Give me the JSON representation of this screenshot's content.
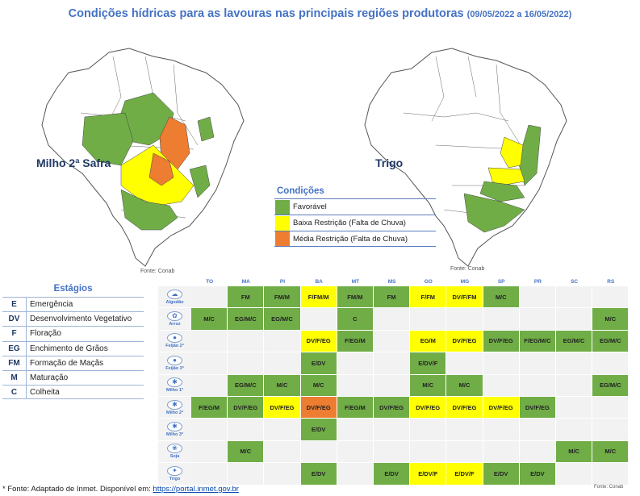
{
  "header": {
    "title": "Condições hídricas para as lavouras nas principais regiões produtoras",
    "period": "(09/05/2022 a 16/05/2022)"
  },
  "maps": [
    {
      "label": "Milho 2ª Safra",
      "source": "Fonte: Conab"
    },
    {
      "label": "Trigo",
      "source": "Fonte: Conab"
    }
  ],
  "legend": {
    "title": "Condições",
    "items": [
      {
        "label": "Favorável",
        "color": "#70ad47"
      },
      {
        "label": "Baixa Restrição (Falta de Chuva)",
        "color": "#ffff00"
      },
      {
        "label": "Média Restrição (Falta de Chuva)",
        "color": "#ed7d31"
      }
    ]
  },
  "stages": {
    "title": "Estágios",
    "items": [
      {
        "code": "E",
        "label": "Emergência"
      },
      {
        "code": "DV",
        "label": "Desenvolvimento Vegetativo"
      },
      {
        "code": "F",
        "label": "Floração"
      },
      {
        "code": "EG",
        "label": "Enchimento de Grãos"
      },
      {
        "code": "FM",
        "label": "Formação de Maçãs"
      },
      {
        "code": "M",
        "label": "Maturação"
      },
      {
        "code": "C",
        "label": "Colheita"
      }
    ]
  },
  "grid": {
    "states": [
      "TO",
      "MA",
      "PI",
      "BA",
      "MT",
      "MS",
      "GO",
      "MG",
      "SP",
      "PR",
      "SC",
      "RS"
    ],
    "colors": {
      "G": "#70ad47",
      "Y": "#ffff00",
      "O": "#ed7d31",
      "": "#f2f2f2"
    },
    "rows": [
      {
        "crop": "Algodão",
        "icon": "cotton-icon",
        "cells": [
          [
            "",
            ""
          ],
          [
            "FM",
            "G"
          ],
          [
            "FM/M",
            "G"
          ],
          [
            "F/FM/M",
            "Y"
          ],
          [
            "FM/M",
            "G"
          ],
          [
            "FM",
            "G"
          ],
          [
            "F/FM",
            "Y"
          ],
          [
            "DV/F/FM",
            "Y"
          ],
          [
            "M/C",
            "G"
          ],
          [
            "",
            ""
          ],
          [
            "",
            ""
          ],
          [
            "",
            ""
          ]
        ]
      },
      {
        "crop": "Arroz",
        "icon": "rice-icon",
        "cells": [
          [
            "M/C",
            "G"
          ],
          [
            "EG/M/C",
            "G"
          ],
          [
            "EG/M/C",
            "G"
          ],
          [
            "",
            ""
          ],
          [
            "C",
            "G"
          ],
          [
            "",
            ""
          ],
          [
            "",
            ""
          ],
          [
            "",
            ""
          ],
          [
            "",
            ""
          ],
          [
            "",
            ""
          ],
          [
            "",
            ""
          ],
          [
            "M/C",
            "G"
          ]
        ]
      },
      {
        "crop": "Feijão 2ª",
        "icon": "bean-icon",
        "cells": [
          [
            "",
            ""
          ],
          [
            "",
            ""
          ],
          [
            "",
            ""
          ],
          [
            "DV/F/EG",
            "Y"
          ],
          [
            "F/EG/M",
            "G"
          ],
          [
            "",
            ""
          ],
          [
            "EG/M",
            "Y"
          ],
          [
            "DV/F/EG",
            "Y"
          ],
          [
            "DV/F/EG",
            "G"
          ],
          [
            "F/EG/M/C",
            "G"
          ],
          [
            "EG/M/C",
            "G"
          ],
          [
            "EG/M/C",
            "G"
          ]
        ]
      },
      {
        "crop": "Feijão 3ª",
        "icon": "bean-icon",
        "cells": [
          [
            "",
            ""
          ],
          [
            "",
            ""
          ],
          [
            "",
            ""
          ],
          [
            "E/DV",
            "G"
          ],
          [
            "",
            ""
          ],
          [
            "",
            ""
          ],
          [
            "E/DV/F",
            "G"
          ],
          [
            "",
            ""
          ],
          [
            "",
            ""
          ],
          [
            "",
            ""
          ],
          [
            "",
            ""
          ],
          [
            "",
            ""
          ]
        ]
      },
      {
        "crop": "Milho 1ª",
        "icon": "corn-icon",
        "cells": [
          [
            "",
            ""
          ],
          [
            "EG/M/C",
            "G"
          ],
          [
            "M/C",
            "G"
          ],
          [
            "M/C",
            "G"
          ],
          [
            "",
            ""
          ],
          [
            "",
            ""
          ],
          [
            "M/C",
            "G"
          ],
          [
            "M/C",
            "G"
          ],
          [
            "",
            ""
          ],
          [
            "",
            ""
          ],
          [
            "",
            ""
          ],
          [
            "EG/M/C",
            "G"
          ]
        ]
      },
      {
        "crop": "Milho 2ª",
        "icon": "corn-icon",
        "cells": [
          [
            "F/EG/M",
            "G"
          ],
          [
            "DV/F/EG",
            "G"
          ],
          [
            "DV/F/EG",
            "Y"
          ],
          [
            "DV/F/EG",
            "O"
          ],
          [
            "F/EG/M",
            "G"
          ],
          [
            "DV/F/EG",
            "G"
          ],
          [
            "DV/F/EG",
            "Y"
          ],
          [
            "DV/F/EG",
            "Y"
          ],
          [
            "DV/F/EG",
            "Y"
          ],
          [
            "DV/F/EG",
            "G"
          ],
          [
            "",
            ""
          ],
          [
            "",
            ""
          ]
        ]
      },
      {
        "crop": "Milho 3ª",
        "icon": "corn-icon",
        "cells": [
          [
            "",
            ""
          ],
          [
            "",
            ""
          ],
          [
            "",
            ""
          ],
          [
            "E/DV",
            "G"
          ],
          [
            "",
            ""
          ],
          [
            "",
            ""
          ],
          [
            "",
            ""
          ],
          [
            "",
            ""
          ],
          [
            "",
            ""
          ],
          [
            "",
            ""
          ],
          [
            "",
            ""
          ],
          [
            "",
            ""
          ]
        ]
      },
      {
        "crop": "Soja",
        "icon": "soy-icon",
        "cells": [
          [
            "",
            ""
          ],
          [
            "M/C",
            "G"
          ],
          [
            "",
            ""
          ],
          [
            "",
            ""
          ],
          [
            "",
            ""
          ],
          [
            "",
            ""
          ],
          [
            "",
            ""
          ],
          [
            "",
            ""
          ],
          [
            "",
            ""
          ],
          [
            "",
            ""
          ],
          [
            "M/C",
            "G"
          ],
          [
            "M/C",
            "G"
          ]
        ]
      },
      {
        "crop": "Trigo",
        "icon": "wheat-icon",
        "cells": [
          [
            "",
            ""
          ],
          [
            "",
            ""
          ],
          [
            "",
            ""
          ],
          [
            "E/DV",
            "G"
          ],
          [
            "",
            ""
          ],
          [
            "E/DV",
            "G"
          ],
          [
            "E/DV/F",
            "Y"
          ],
          [
            "E/DV/F",
            "Y"
          ],
          [
            "E/DV",
            "G"
          ],
          [
            "E/DV",
            "G"
          ],
          [
            "",
            ""
          ],
          [
            "",
            ""
          ]
        ]
      }
    ],
    "source": "Fonte: Conab"
  },
  "footer": {
    "prefix": "* Fonte: Adaptado de Inmet. Disponível em: ",
    "link": "https://portal.inmet.gov.br"
  }
}
